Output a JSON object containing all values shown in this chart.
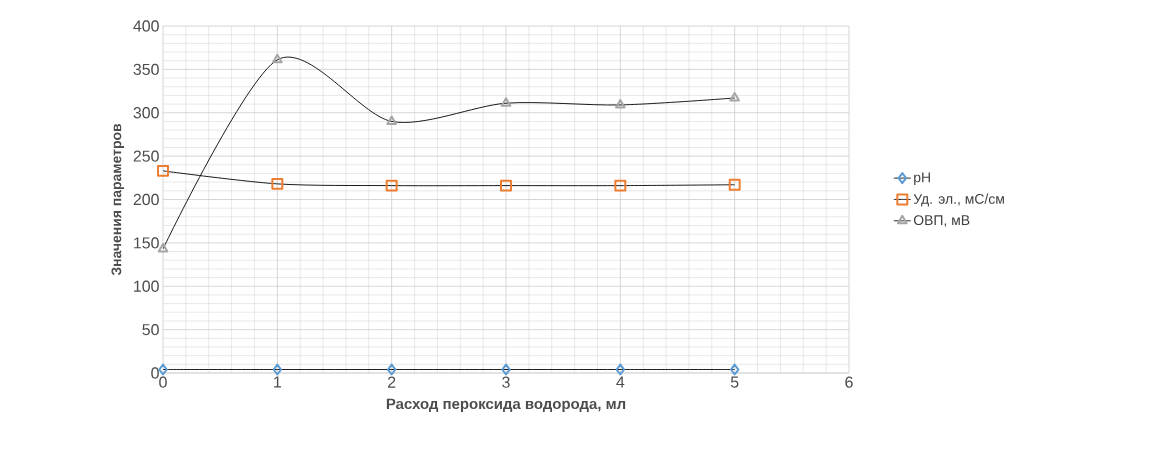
{
  "chart_data": {
    "type": "line",
    "xlabel": "Расход пероксида водорода, мл",
    "ylabel": "Значения параметров",
    "x": [
      0,
      1,
      2,
      3,
      4,
      5
    ],
    "series": [
      {
        "name": "pH",
        "color": "#5b9bd5",
        "marker": "diamond",
        "values": [
          4,
          4,
          4,
          4,
          4,
          4
        ]
      },
      {
        "name": "Уд. эл., мС/см",
        "color": "#ed7d31",
        "marker": "square",
        "values": [
          233,
          218,
          216,
          216,
          216,
          217
        ]
      },
      {
        "name": "ОВП, мВ",
        "color": "#a5a5a5",
        "marker": "triangle",
        "values": [
          143,
          361,
          290,
          311,
          309,
          317
        ]
      }
    ],
    "xlim": [
      0,
      6
    ],
    "xticks": [
      0,
      1,
      2,
      3,
      4,
      5,
      6
    ],
    "ylim": [
      0,
      400
    ],
    "yticks": [
      0,
      50,
      100,
      150,
      200,
      250,
      300,
      350,
      400
    ],
    "grid": true,
    "legend": "right"
  }
}
